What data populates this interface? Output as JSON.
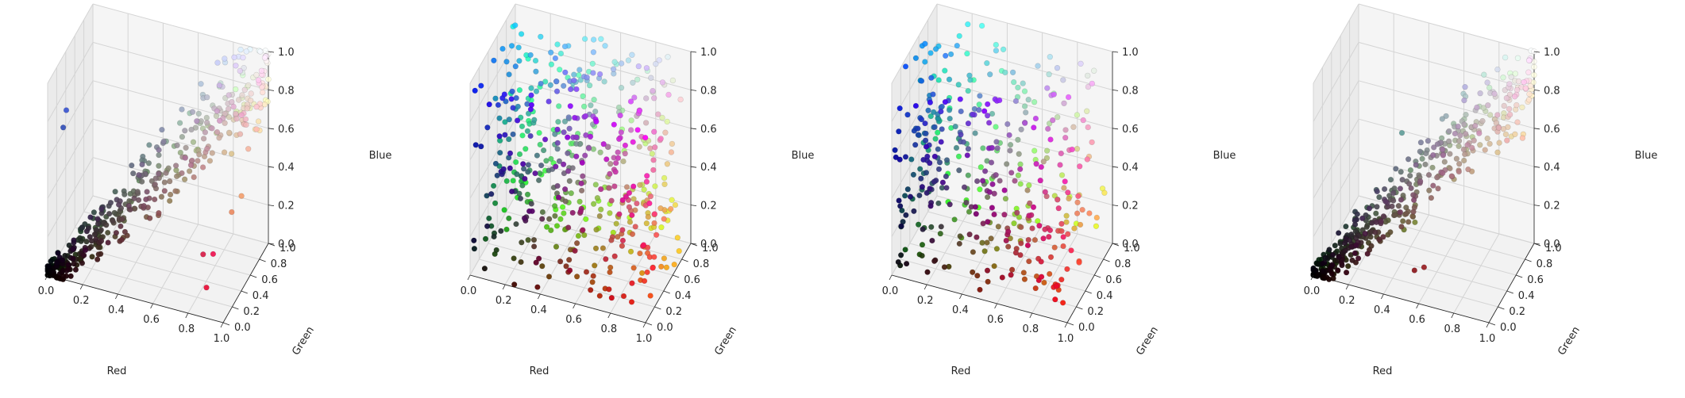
{
  "chart_data": [
    {
      "type": "scatter3d",
      "xlabel": "Red",
      "ylabel": "Green",
      "zlabel": "Blue",
      "xlim": [
        0,
        1
      ],
      "ylim": [
        0,
        1
      ],
      "zlim": [
        0,
        1
      ],
      "xticks": [
        "0.0",
        "0.2",
        "0.4",
        "0.6",
        "0.8",
        "1.0"
      ],
      "yticks": [
        "0.0",
        "0.2",
        "0.4",
        "0.6",
        "0.8",
        "1.0"
      ],
      "zticks": [
        "0.0",
        "0.2",
        "0.4",
        "0.6",
        "0.8",
        "1.0"
      ],
      "grid": true,
      "distribution": "diagonal",
      "points": [
        {
          "r": 0.06,
          "g": 0.18,
          "b": 0.8,
          "color": "#3a55d0"
        },
        {
          "r": 0.05,
          "g": 0.15,
          "b": 0.72,
          "color": "#3450b8"
        },
        {
          "r": 0.93,
          "g": 0.05,
          "b": 0.32,
          "color": "#ee1552"
        },
        {
          "r": 0.86,
          "g": 0.1,
          "b": 0.28,
          "color": "#d8204a"
        },
        {
          "r": 0.9,
          "g": 0.02,
          "b": 0.15,
          "color": "#e8123a"
        },
        {
          "r": 0.95,
          "g": 0.6,
          "b": 0.4,
          "color": "#f29a66"
        },
        {
          "r": 0.92,
          "g": 0.5,
          "b": 0.35,
          "color": "#ea855a"
        }
      ]
    },
    {
      "type": "scatter3d",
      "xlabel": "Red",
      "ylabel": "Green",
      "zlabel": "Blue",
      "xlim": [
        0,
        1
      ],
      "ylim": [
        0,
        1
      ],
      "zlim": [
        0,
        1
      ],
      "xticks": [
        "0.0",
        "0.2",
        "0.4",
        "0.6",
        "0.8",
        "1.0"
      ],
      "yticks": [
        "0.0",
        "0.2",
        "0.4",
        "0.6",
        "0.8",
        "1.0"
      ],
      "zticks": [
        "0.0",
        "0.2",
        "0.4",
        "0.6",
        "0.8",
        "1.0"
      ],
      "grid": true,
      "distribution": "uniform",
      "points": [
        {
          "r": 0.9,
          "g": 0.08,
          "b": 0.05,
          "color": "#e2150d"
        },
        {
          "r": 0.85,
          "g": 0.1,
          "b": 0.06,
          "color": "#d61a12"
        },
        {
          "r": 0.55,
          "g": 0.85,
          "b": 0.98,
          "color": "#8cd8fa"
        },
        {
          "r": 0.15,
          "g": 0.35,
          "b": 0.85,
          "color": "#2a5ad8"
        },
        {
          "r": 0.95,
          "g": 0.85,
          "b": 0.25,
          "color": "#f2d840"
        }
      ]
    },
    {
      "type": "scatter3d",
      "xlabel": "Red",
      "ylabel": "Green",
      "zlabel": "Blue",
      "xlim": [
        0,
        1
      ],
      "ylim": [
        0,
        1
      ],
      "zlim": [
        0,
        1
      ],
      "xticks": [
        "0.0",
        "0.2",
        "0.4",
        "0.6",
        "0.8",
        "1.0"
      ],
      "yticks": [
        "0.0",
        "0.2",
        "0.4",
        "0.6",
        "0.8",
        "1.0"
      ],
      "zticks": [
        "0.0",
        "0.2",
        "0.4",
        "0.6",
        "0.8",
        "1.0"
      ],
      "grid": true,
      "distribution": "clustered",
      "points": [
        {
          "r": 0.08,
          "g": 0.55,
          "b": 0.95,
          "color": "#16b0f2"
        },
        {
          "r": 0.06,
          "g": 0.5,
          "b": 0.92,
          "color": "#10a4ea"
        },
        {
          "r": 0.5,
          "g": 0.78,
          "b": 0.12,
          "color": "#80c820"
        },
        {
          "r": 0.52,
          "g": 0.8,
          "b": 0.1,
          "color": "#84cc1a"
        },
        {
          "r": 0.98,
          "g": 0.9,
          "b": 0.3,
          "color": "#fae64c"
        },
        {
          "r": 0.95,
          "g": 0.1,
          "b": 0.05,
          "color": "#f2190d"
        },
        {
          "r": 0.9,
          "g": 0.3,
          "b": 0.25,
          "color": "#e64c40"
        }
      ]
    },
    {
      "type": "scatter3d",
      "xlabel": "Red",
      "ylabel": "Green",
      "zlabel": "Blue",
      "xlim": [
        0,
        1
      ],
      "ylim": [
        0,
        1
      ],
      "zlim": [
        0,
        1
      ],
      "xticks": [
        "0.0",
        "0.2",
        "0.4",
        "0.6",
        "0.8",
        "1.0"
      ],
      "yticks": [
        "0.0",
        "0.2",
        "0.4",
        "0.6",
        "0.8",
        "1.0"
      ],
      "zticks": [
        "0.0",
        "0.2",
        "0.4",
        "0.6",
        "0.8",
        "1.0"
      ],
      "grid": true,
      "distribution": "diagonal",
      "points": [
        {
          "r": 0.45,
          "g": 0.5,
          "b": 0.18,
          "color": "#73802e"
        },
        {
          "r": 0.4,
          "g": 0.45,
          "b": 0.15,
          "color": "#667326"
        },
        {
          "r": 0.55,
          "g": 0.1,
          "b": 0.12,
          "color": "#8c1a1f"
        },
        {
          "r": 0.6,
          "g": 0.12,
          "b": 0.14,
          "color": "#991f24"
        },
        {
          "r": 0.35,
          "g": 0.6,
          "b": 0.58,
          "color": "#599994"
        }
      ]
    }
  ]
}
